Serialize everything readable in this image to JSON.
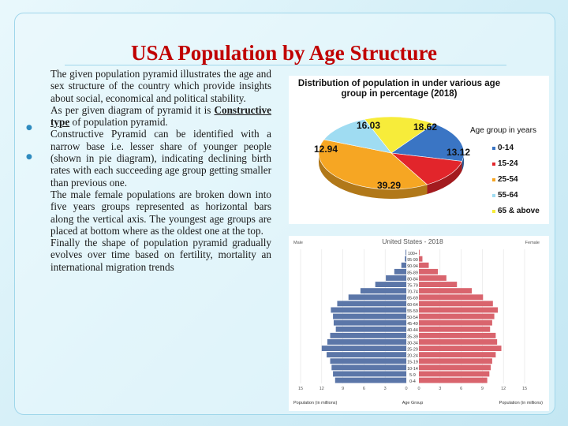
{
  "slide": {
    "title": "USA Population by Age Structure",
    "paragraphs": [
      "The given population pyramid illustrates the age and sex structure of the country which provide insights about social, economical and political stability.",
      "As per given diagram of pyramid it is",
      "Constructive type",
      "of population pyramid.",
      "Constructive Pyramid can be identified with a narrow base i.e. lesser share of younger people (shown in pie diagram), indicating declining birth rates with each succeeding age group getting smaller than previous one.",
      "The male female populations are broken down into five years groups represented as horizontal bars along the vertical axis. The youngest age groups are placed at bottom where as the oldest one at the top.",
      "Finally the shape of population pyramid gradually evolves over time based on fertility, mortality an international migration trends"
    ]
  },
  "chart_data": [
    {
      "type": "pie",
      "title": "Distribution of population in under various age group in percentage (2018)",
      "legend_title": "Age group in years",
      "legend_position": "right",
      "slices": [
        {
          "label": "0-14",
          "value": 18.62,
          "color": "#3a75c4"
        },
        {
          "label": "15-24",
          "value": 13.12,
          "color": "#e2252b"
        },
        {
          "label": "25-54",
          "value": 39.29,
          "color": "#f6a623"
        },
        {
          "label": "55-64",
          "value": 12.94,
          "color": "#9fdcf2"
        },
        {
          "label": "65 & above",
          "value": 16.03,
          "color": "#f7ec3a"
        }
      ],
      "display_labels": [
        "16.03",
        "18.62",
        "12.94",
        "13.12",
        "39.29"
      ]
    },
    {
      "type": "bar",
      "orientation": "horizontal-pyramid",
      "title": "United States - 2018",
      "left_label": "Male",
      "right_label": "Female",
      "xlabel_left": "Population (in millions)",
      "xlabel_center": "Age Group",
      "xlabel_right": "Population (in millions)",
      "x_ticks": [
        "15",
        "12",
        "9",
        "6",
        "3",
        "0",
        "3",
        "6",
        "9",
        "12",
        "15"
      ],
      "xlim": [
        0,
        15
      ],
      "male_color": "#5b76a8",
      "female_color": "#d9646d",
      "categories": [
        "0-4",
        "5-9",
        "10-14",
        "15-19",
        "20-24",
        "25-29",
        "30-34",
        "35-39",
        "40-44",
        "45-49",
        "50-54",
        "55-59",
        "60-64",
        "65-69",
        "70-74",
        "75-79",
        "80-84",
        "85-89",
        "90-94",
        "95-99",
        "100+"
      ],
      "series": [
        {
          "name": "Male",
          "values": [
            10.1,
            10.4,
            10.6,
            10.8,
            11.3,
            12.0,
            11.2,
            10.8,
            10.0,
            10.3,
            10.4,
            10.7,
            9.8,
            8.2,
            6.5,
            4.4,
            2.9,
            1.7,
            0.7,
            0.2,
            0.1
          ]
        },
        {
          "name": "Female",
          "values": [
            9.7,
            10.0,
            10.2,
            10.4,
            10.9,
            11.7,
            11.1,
            10.9,
            10.1,
            10.4,
            10.7,
            11.2,
            10.5,
            9.1,
            7.5,
            5.4,
            3.9,
            2.7,
            1.4,
            0.5,
            0.1
          ]
        }
      ]
    }
  ]
}
